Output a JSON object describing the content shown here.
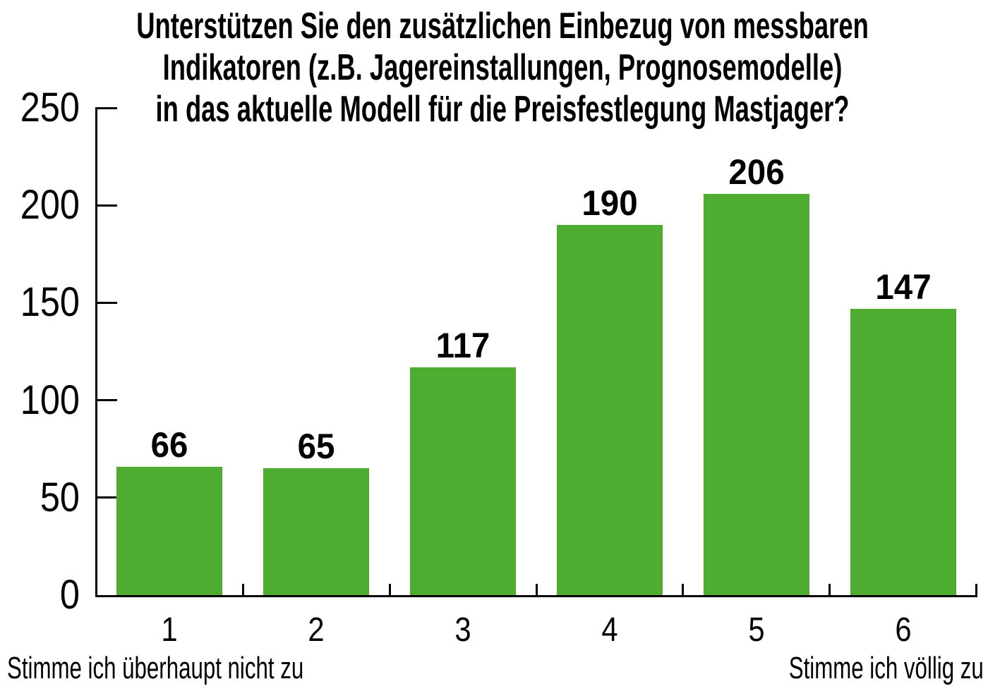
{
  "title": {
    "line1": "Unterstützen Sie den zusätzlichen Einbezug von messbaren",
    "line2": "Indikatoren (z.B. Jagereinstallungen, Prognosemodelle)",
    "line3": "in das aktuelle Modell für die Preisfestlegung Mastjager?"
  },
  "axis": {
    "left_scale_label": "Stimme ich überhaupt nicht zu",
    "right_scale_label": "Stimme ich völlig zu"
  },
  "colors": {
    "bar": "#4EAC31",
    "axis": "#000000",
    "text": "#000000",
    "background": "#ffffff"
  },
  "chart_data": {
    "type": "bar",
    "title": "Unterstützen Sie den zusätzlichen Einbezug von messbaren Indikatoren (z.B. Jagereinstallungen, Prognosemodelle) in das aktuelle Modell für die Preisfestlegung Mastjager?",
    "categories": [
      "1",
      "2",
      "3",
      "4",
      "5",
      "6"
    ],
    "values": [
      66,
      65,
      117,
      190,
      206,
      147
    ],
    "bar_labels": [
      "66",
      "65",
      "117",
      "190",
      "206",
      "147"
    ],
    "xlabel_left": "Stimme ich überhaupt nicht zu",
    "xlabel_right": "Stimme ich völlig zu",
    "ylim": [
      0,
      250
    ],
    "yticks": [
      0,
      50,
      100,
      150,
      200,
      250
    ],
    "grid": false,
    "legend": false,
    "bar_color": "#4EAC31"
  }
}
